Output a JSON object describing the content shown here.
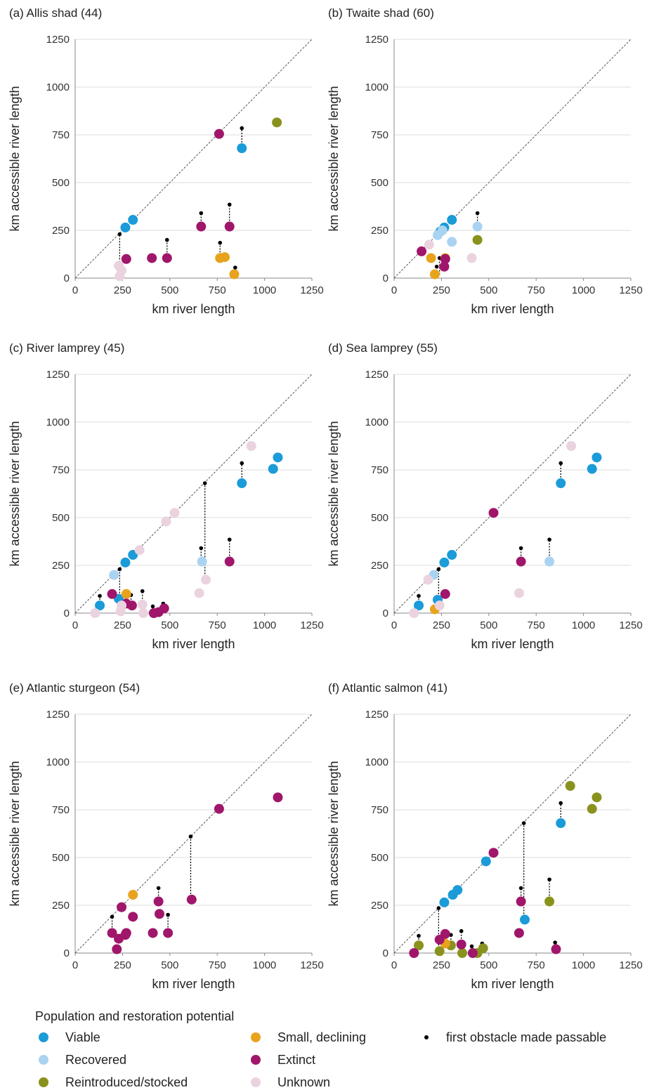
{
  "legend": {
    "title": "Population and restoration potential",
    "items": [
      {
        "key": "viable",
        "label": "Viable",
        "color": "#1B9BD8"
      },
      {
        "key": "recovered",
        "label": "Recovered",
        "color": "#A9D3F1"
      },
      {
        "key": "reintroduced",
        "label": "Reintroduced/stocked",
        "color": "#8A921E"
      },
      {
        "key": "small",
        "label": "Small, declining",
        "color": "#E8A31C"
      },
      {
        "key": "extinct",
        "label": "Extinct",
        "color": "#A0166B"
      },
      {
        "key": "unknown",
        "label": "Unknown",
        "color": "#EAD3DF"
      },
      {
        "key": "obstacle",
        "label": "first obstacle made passable",
        "color": "#000000"
      }
    ]
  },
  "chart_data": [
    {
      "type": "scatter",
      "title": "(a) Allis shad (44)",
      "xlabel": "km river length",
      "ylabel": "km accessible river length",
      "xlim": [
        0,
        1250
      ],
      "ylim": [
        0,
        1250
      ],
      "xticks": [
        0,
        250,
        500,
        750,
        1000,
        1250
      ],
      "yticks": [
        0,
        250,
        500,
        750,
        1000,
        1250
      ],
      "grid": "horizontal",
      "reference_line": "1:1 diagonal",
      "points": [
        {
          "x": 265,
          "y": 265,
          "status": "viable"
        },
        {
          "x": 305,
          "y": 305,
          "status": "viable"
        },
        {
          "x": 880,
          "y": 680,
          "status": "viable"
        },
        {
          "x": 1065,
          "y": 815,
          "status": "reintroduced"
        },
        {
          "x": 765,
          "y": 105,
          "status": "small"
        },
        {
          "x": 790,
          "y": 110,
          "status": "small"
        },
        {
          "x": 840,
          "y": 20,
          "status": "small"
        },
        {
          "x": 270,
          "y": 100,
          "status": "extinct"
        },
        {
          "x": 405,
          "y": 105,
          "status": "extinct"
        },
        {
          "x": 485,
          "y": 105,
          "status": "extinct"
        },
        {
          "x": 665,
          "y": 270,
          "status": "extinct"
        },
        {
          "x": 760,
          "y": 755,
          "status": "extinct"
        },
        {
          "x": 815,
          "y": 270,
          "status": "extinct"
        },
        {
          "x": 230,
          "y": 65,
          "status": "unknown"
        },
        {
          "x": 245,
          "y": 40,
          "status": "unknown"
        },
        {
          "x": 235,
          "y": 10,
          "status": "unknown"
        }
      ],
      "obstacles": [
        {
          "x": 235,
          "y_from": 10,
          "y_to": 230
        },
        {
          "x": 485,
          "y_from": 105,
          "y_to": 200
        },
        {
          "x": 665,
          "y_from": 270,
          "y_to": 340
        },
        {
          "x": 765,
          "y_from": 105,
          "y_to": 185
        },
        {
          "x": 815,
          "y_from": 270,
          "y_to": 385
        },
        {
          "x": 845,
          "y_from": 20,
          "y_to": 55
        },
        {
          "x": 880,
          "y_from": 680,
          "y_to": 785
        }
      ]
    },
    {
      "type": "scatter",
      "title": "(b) Twaite shad (60)",
      "xlabel": "km river length",
      "ylabel": "km accessible river length",
      "xlim": [
        0,
        1250
      ],
      "ylim": [
        0,
        1250
      ],
      "xticks": [
        0,
        250,
        500,
        750,
        1000,
        1250
      ],
      "yticks": [
        0,
        250,
        500,
        750,
        1000,
        1250
      ],
      "grid": "horizontal",
      "reference_line": "1:1 diagonal",
      "points": [
        {
          "x": 245,
          "y": 245,
          "status": "viable"
        },
        {
          "x": 265,
          "y": 265,
          "status": "viable"
        },
        {
          "x": 305,
          "y": 305,
          "status": "viable"
        },
        {
          "x": 230,
          "y": 225,
          "status": "recovered"
        },
        {
          "x": 255,
          "y": 250,
          "status": "recovered"
        },
        {
          "x": 305,
          "y": 190,
          "status": "recovered"
        },
        {
          "x": 440,
          "y": 270,
          "status": "recovered"
        },
        {
          "x": 440,
          "y": 200,
          "status": "reintroduced"
        },
        {
          "x": 195,
          "y": 105,
          "status": "small"
        },
        {
          "x": 215,
          "y": 20,
          "status": "small"
        },
        {
          "x": 270,
          "y": 105,
          "status": "small"
        },
        {
          "x": 145,
          "y": 140,
          "status": "extinct"
        },
        {
          "x": 265,
          "y": 60,
          "status": "extinct"
        },
        {
          "x": 270,
          "y": 100,
          "status": "extinct"
        },
        {
          "x": 185,
          "y": 175,
          "status": "unknown"
        },
        {
          "x": 410,
          "y": 105,
          "status": "unknown"
        }
      ],
      "obstacles": [
        {
          "x": 225,
          "y_from": 20,
          "y_to": 60
        },
        {
          "x": 240,
          "y_from": 20,
          "y_to": 105
        },
        {
          "x": 440,
          "y_from": 270,
          "y_to": 340
        }
      ]
    },
    {
      "type": "scatter",
      "title": "(c) River lamprey (45)",
      "xlabel": "km river length",
      "ylabel": "km accessible river length",
      "xlim": [
        0,
        1250
      ],
      "ylim": [
        0,
        1250
      ],
      "xticks": [
        0,
        250,
        500,
        750,
        1000,
        1250
      ],
      "yticks": [
        0,
        250,
        500,
        750,
        1000,
        1250
      ],
      "grid": "horizontal",
      "reference_line": "1:1 diagonal",
      "points": [
        {
          "x": 130,
          "y": 40,
          "status": "viable"
        },
        {
          "x": 230,
          "y": 75,
          "status": "viable"
        },
        {
          "x": 265,
          "y": 265,
          "status": "viable"
        },
        {
          "x": 305,
          "y": 305,
          "status": "viable"
        },
        {
          "x": 880,
          "y": 680,
          "status": "viable"
        },
        {
          "x": 1045,
          "y": 755,
          "status": "viable"
        },
        {
          "x": 1070,
          "y": 815,
          "status": "viable"
        },
        {
          "x": 205,
          "y": 200,
          "status": "recovered"
        },
        {
          "x": 670,
          "y": 270,
          "status": "recovered"
        },
        {
          "x": 270,
          "y": 100,
          "status": "small"
        },
        {
          "x": 195,
          "y": 100,
          "status": "extinct"
        },
        {
          "x": 270,
          "y": 50,
          "status": "extinct"
        },
        {
          "x": 300,
          "y": 40,
          "status": "extinct"
        },
        {
          "x": 415,
          "y": 0,
          "status": "extinct"
        },
        {
          "x": 440,
          "y": 5,
          "status": "extinct"
        },
        {
          "x": 470,
          "y": 25,
          "status": "extinct"
        },
        {
          "x": 815,
          "y": 270,
          "status": "extinct"
        },
        {
          "x": 105,
          "y": 0,
          "status": "unknown"
        },
        {
          "x": 240,
          "y": 10,
          "status": "unknown"
        },
        {
          "x": 245,
          "y": 40,
          "status": "unknown"
        },
        {
          "x": 340,
          "y": 330,
          "status": "unknown"
        },
        {
          "x": 355,
          "y": 45,
          "status": "unknown"
        },
        {
          "x": 360,
          "y": 0,
          "status": "unknown"
        },
        {
          "x": 480,
          "y": 480,
          "status": "unknown"
        },
        {
          "x": 525,
          "y": 525,
          "status": "unknown"
        },
        {
          "x": 655,
          "y": 105,
          "status": "unknown"
        },
        {
          "x": 690,
          "y": 175,
          "status": "unknown"
        },
        {
          "x": 930,
          "y": 875,
          "status": "unknown"
        }
      ],
      "obstacles": [
        {
          "x": 130,
          "y_from": 40,
          "y_to": 90
        },
        {
          "x": 235,
          "y_from": 75,
          "y_to": 230
        },
        {
          "x": 295,
          "y_from": 40,
          "y_to": 95
        },
        {
          "x": 355,
          "y_from": 45,
          "y_to": 115
        },
        {
          "x": 410,
          "y_from": 0,
          "y_to": 35
        },
        {
          "x": 465,
          "y_from": 25,
          "y_to": 50
        },
        {
          "x": 665,
          "y_from": 270,
          "y_to": 340
        },
        {
          "x": 685,
          "y_from": 175,
          "y_to": 680
        },
        {
          "x": 815,
          "y_from": 270,
          "y_to": 385
        },
        {
          "x": 880,
          "y_from": 680,
          "y_to": 785
        }
      ]
    },
    {
      "type": "scatter",
      "title": "(d) Sea lamprey (55)",
      "xlabel": "km river length",
      "ylabel": "km accessible river length",
      "xlim": [
        0,
        1250
      ],
      "ylim": [
        0,
        1250
      ],
      "xticks": [
        0,
        250,
        500,
        750,
        1000,
        1250
      ],
      "yticks": [
        0,
        250,
        500,
        750,
        1000,
        1250
      ],
      "grid": "horizontal",
      "reference_line": "1:1 diagonal",
      "points": [
        {
          "x": 130,
          "y": 40,
          "status": "viable"
        },
        {
          "x": 230,
          "y": 70,
          "status": "viable"
        },
        {
          "x": 265,
          "y": 265,
          "status": "viable"
        },
        {
          "x": 305,
          "y": 305,
          "status": "viable"
        },
        {
          "x": 880,
          "y": 680,
          "status": "viable"
        },
        {
          "x": 1045,
          "y": 755,
          "status": "viable"
        },
        {
          "x": 1070,
          "y": 815,
          "status": "viable"
        },
        {
          "x": 210,
          "y": 200,
          "status": "recovered"
        },
        {
          "x": 820,
          "y": 270,
          "status": "recovered"
        },
        {
          "x": 215,
          "y": 20,
          "status": "small"
        },
        {
          "x": 270,
          "y": 100,
          "status": "extinct"
        },
        {
          "x": 525,
          "y": 525,
          "status": "extinct"
        },
        {
          "x": 670,
          "y": 270,
          "status": "extinct"
        },
        {
          "x": 105,
          "y": 0,
          "status": "unknown"
        },
        {
          "x": 180,
          "y": 175,
          "status": "unknown"
        },
        {
          "x": 240,
          "y": 40,
          "status": "unknown"
        },
        {
          "x": 660,
          "y": 105,
          "status": "unknown"
        },
        {
          "x": 935,
          "y": 875,
          "status": "unknown"
        }
      ],
      "obstacles": [
        {
          "x": 130,
          "y_from": 40,
          "y_to": 90
        },
        {
          "x": 235,
          "y_from": 70,
          "y_to": 230
        },
        {
          "x": 670,
          "y_from": 270,
          "y_to": 340
        },
        {
          "x": 820,
          "y_from": 270,
          "y_to": 385
        },
        {
          "x": 880,
          "y_from": 680,
          "y_to": 785
        }
      ]
    },
    {
      "type": "scatter",
      "title": "(e) Atlantic sturgeon (54)",
      "xlabel": "km river length",
      "ylabel": "km accessible river length",
      "xlim": [
        0,
        1250
      ],
      "ylim": [
        0,
        1250
      ],
      "xticks": [
        0,
        250,
        500,
        750,
        1000,
        1250
      ],
      "yticks": [
        0,
        250,
        500,
        750,
        1000,
        1250
      ],
      "grid": "horizontal",
      "reference_line": "1:1 diagonal",
      "points": [
        {
          "x": 305,
          "y": 305,
          "status": "small"
        },
        {
          "x": 195,
          "y": 105,
          "status": "extinct"
        },
        {
          "x": 220,
          "y": 20,
          "status": "extinct"
        },
        {
          "x": 230,
          "y": 75,
          "status": "extinct"
        },
        {
          "x": 245,
          "y": 240,
          "status": "extinct"
        },
        {
          "x": 265,
          "y": 95,
          "status": "extinct"
        },
        {
          "x": 270,
          "y": 105,
          "status": "extinct"
        },
        {
          "x": 305,
          "y": 190,
          "status": "extinct"
        },
        {
          "x": 410,
          "y": 105,
          "status": "extinct"
        },
        {
          "x": 440,
          "y": 270,
          "status": "extinct"
        },
        {
          "x": 445,
          "y": 205,
          "status": "extinct"
        },
        {
          "x": 490,
          "y": 105,
          "status": "extinct"
        },
        {
          "x": 615,
          "y": 280,
          "status": "extinct"
        },
        {
          "x": 760,
          "y": 755,
          "status": "extinct"
        },
        {
          "x": 1070,
          "y": 815,
          "status": "extinct"
        }
      ],
      "obstacles": [
        {
          "x": 195,
          "y_from": 105,
          "y_to": 190
        },
        {
          "x": 440,
          "y_from": 270,
          "y_to": 340
        },
        {
          "x": 490,
          "y_from": 105,
          "y_to": 200
        },
        {
          "x": 610,
          "y_from": 280,
          "y_to": 610
        }
      ]
    },
    {
      "type": "scatter",
      "title": "(f) Atlantic salmon (41)",
      "xlabel": "km river length",
      "ylabel": "km accessible river length",
      "xlim": [
        0,
        1250
      ],
      "ylim": [
        0,
        1250
      ],
      "xticks": [
        0,
        250,
        500,
        750,
        1000,
        1250
      ],
      "yticks": [
        0,
        250,
        500,
        750,
        1000,
        1250
      ],
      "grid": "horizontal",
      "reference_line": "1:1 diagonal",
      "points": [
        {
          "x": 265,
          "y": 265,
          "status": "viable"
        },
        {
          "x": 310,
          "y": 305,
          "status": "viable"
        },
        {
          "x": 335,
          "y": 330,
          "status": "viable"
        },
        {
          "x": 485,
          "y": 480,
          "status": "viable"
        },
        {
          "x": 690,
          "y": 175,
          "status": "viable"
        },
        {
          "x": 880,
          "y": 680,
          "status": "viable"
        },
        {
          "x": 130,
          "y": 40,
          "status": "reintroduced"
        },
        {
          "x": 240,
          "y": 10,
          "status": "reintroduced"
        },
        {
          "x": 300,
          "y": 40,
          "status": "reintroduced"
        },
        {
          "x": 360,
          "y": 0,
          "status": "reintroduced"
        },
        {
          "x": 440,
          "y": 0,
          "status": "reintroduced"
        },
        {
          "x": 470,
          "y": 25,
          "status": "reintroduced"
        },
        {
          "x": 820,
          "y": 270,
          "status": "reintroduced"
        },
        {
          "x": 930,
          "y": 875,
          "status": "reintroduced"
        },
        {
          "x": 1045,
          "y": 755,
          "status": "reintroduced"
        },
        {
          "x": 1070,
          "y": 815,
          "status": "reintroduced"
        },
        {
          "x": 270,
          "y": 50,
          "status": "small"
        },
        {
          "x": 105,
          "y": 0,
          "status": "extinct"
        },
        {
          "x": 240,
          "y": 70,
          "status": "extinct"
        },
        {
          "x": 270,
          "y": 100,
          "status": "extinct"
        },
        {
          "x": 355,
          "y": 45,
          "status": "extinct"
        },
        {
          "x": 415,
          "y": 0,
          "status": "extinct"
        },
        {
          "x": 525,
          "y": 525,
          "status": "extinct"
        },
        {
          "x": 660,
          "y": 105,
          "status": "extinct"
        },
        {
          "x": 670,
          "y": 270,
          "status": "extinct"
        },
        {
          "x": 855,
          "y": 20,
          "status": "extinct"
        }
      ],
      "obstacles": [
        {
          "x": 130,
          "y_from": 40,
          "y_to": 90
        },
        {
          "x": 235,
          "y_from": 10,
          "y_to": 235
        },
        {
          "x": 300,
          "y_from": 40,
          "y_to": 95
        },
        {
          "x": 355,
          "y_from": 45,
          "y_to": 115
        },
        {
          "x": 410,
          "y_from": 0,
          "y_to": 35
        },
        {
          "x": 465,
          "y_from": 25,
          "y_to": 50
        },
        {
          "x": 670,
          "y_from": 270,
          "y_to": 340
        },
        {
          "x": 685,
          "y_from": 175,
          "y_to": 680
        },
        {
          "x": 820,
          "y_from": 270,
          "y_to": 385
        },
        {
          "x": 850,
          "y_from": 20,
          "y_to": 55
        },
        {
          "x": 880,
          "y_from": 680,
          "y_to": 785
        }
      ]
    }
  ]
}
